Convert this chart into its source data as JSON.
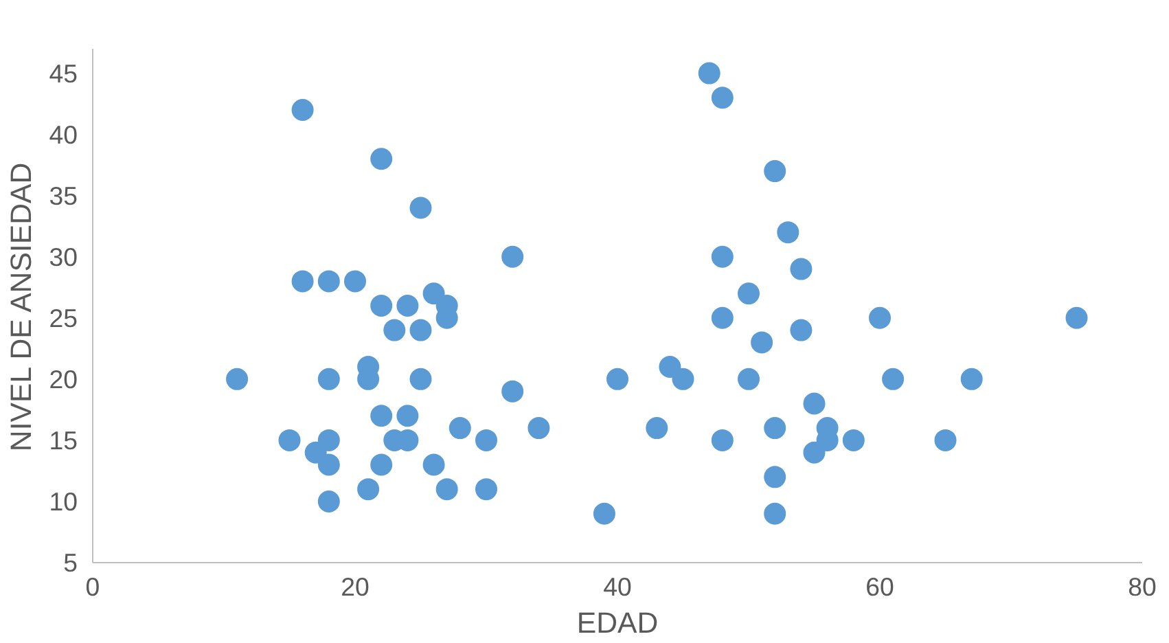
{
  "chart_data": {
    "type": "scatter",
    "xlabel": "EDAD",
    "ylabel": "NIVEL DE ANSIEDAD",
    "x": [
      11,
      15,
      16,
      16,
      17,
      18,
      18,
      18,
      18,
      18,
      20,
      21,
      21,
      21,
      22,
      22,
      22,
      22,
      23,
      23,
      24,
      24,
      24,
      25,
      25,
      25,
      26,
      26,
      27,
      27,
      27,
      28,
      30,
      30,
      32,
      32,
      34,
      39,
      40,
      43,
      44,
      45,
      47,
      48,
      48,
      48,
      48,
      50,
      50,
      51,
      52,
      52,
      52,
      52,
      53,
      54,
      54,
      55,
      55,
      56,
      56,
      58,
      60,
      61,
      65,
      67,
      75
    ],
    "values": [
      20,
      15,
      42,
      28,
      14,
      28,
      20,
      15,
      13,
      10,
      28,
      21,
      20,
      11,
      38,
      26,
      17,
      13,
      24,
      15,
      26,
      17,
      15,
      34,
      24,
      20,
      27,
      13,
      26,
      25,
      11,
      16,
      15,
      11,
      30,
      19,
      16,
      9,
      20,
      16,
      21,
      20,
      45,
      43,
      30,
      25,
      15,
      27,
      20,
      23,
      37,
      16,
      12,
      9,
      32,
      29,
      24,
      18,
      14,
      16,
      15,
      15,
      25,
      20,
      15,
      20,
      25
    ],
    "color": "#5b9bd5",
    "marker": "circle",
    "xlim": [
      0,
      80
    ],
    "xticks": [
      0,
      20,
      40,
      60,
      80
    ],
    "ylim": [
      5,
      47
    ],
    "yticks": [
      5,
      10,
      15,
      20,
      25,
      30,
      35,
      40,
      45
    ],
    "grid": false
  }
}
